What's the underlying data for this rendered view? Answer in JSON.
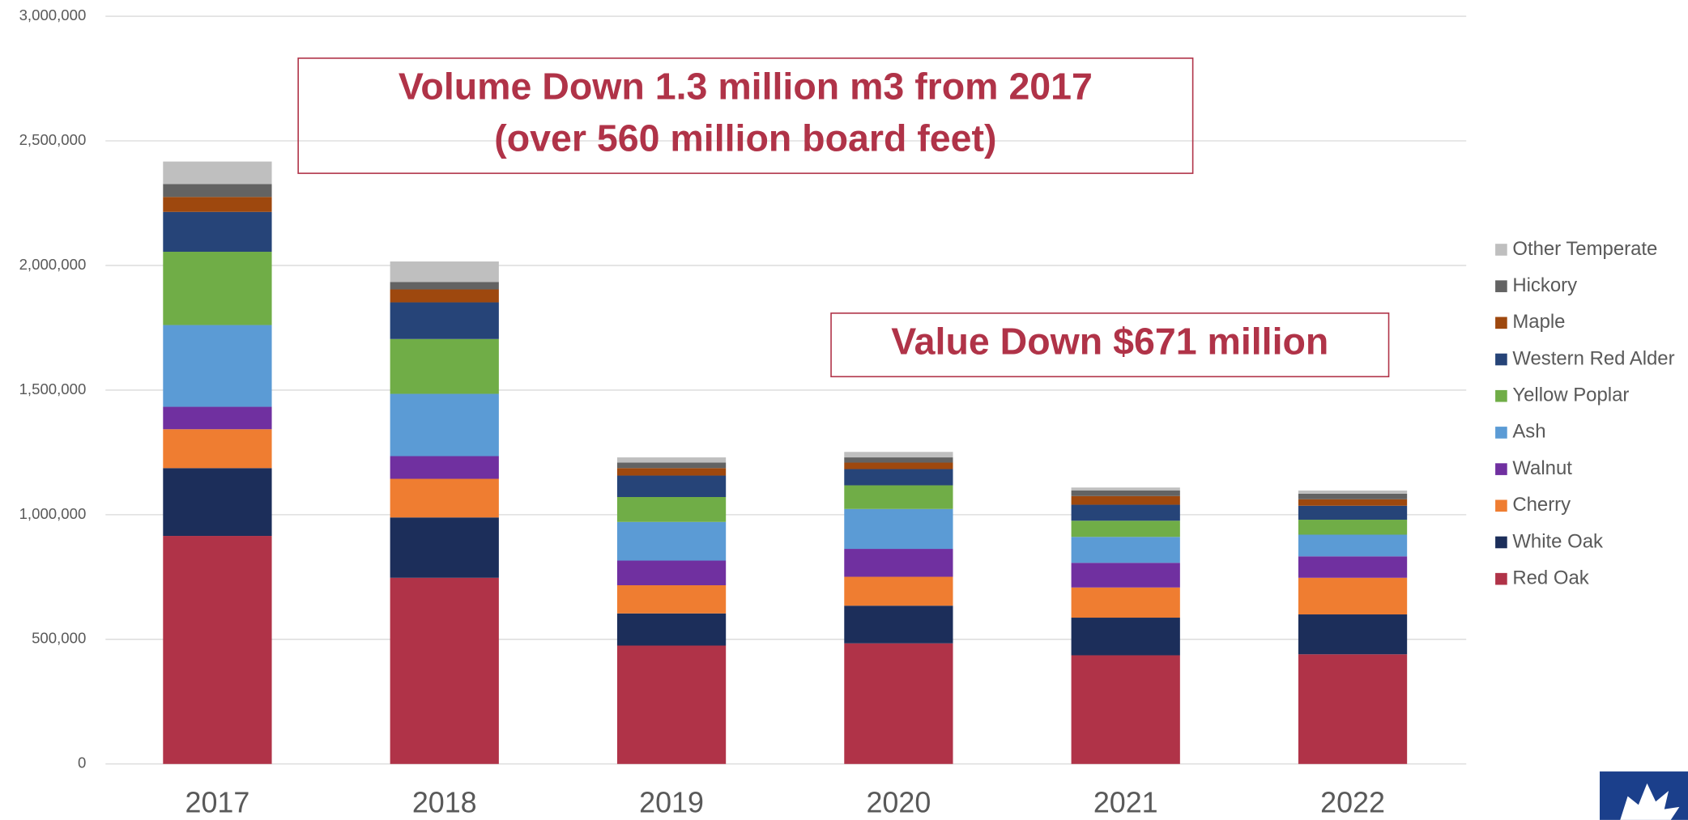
{
  "chart_data": {
    "type": "stacked_bar",
    "categories": [
      "2017",
      "2018",
      "2019",
      "2020",
      "2021",
      "2022"
    ],
    "series": [
      {
        "name": "Red Oak",
        "color": "#b03348",
        "values": [
          915000,
          747000,
          475000,
          484000,
          436000,
          440000
        ]
      },
      {
        "name": "White Oak",
        "color": "#1c2e5a",
        "values": [
          272000,
          242000,
          129000,
          151000,
          151000,
          160000
        ]
      },
      {
        "name": "Cherry",
        "color": "#ef7d31",
        "values": [
          156000,
          155000,
          113000,
          116000,
          121000,
          147000
        ]
      },
      {
        "name": "Walnut",
        "color": "#7030a0",
        "values": [
          90000,
          91000,
          99000,
          112000,
          99000,
          86000
        ]
      },
      {
        "name": "Ash",
        "color": "#5b9bd5",
        "values": [
          328000,
          250000,
          155000,
          160000,
          104000,
          87000
        ]
      },
      {
        "name": "Yellow Poplar",
        "color": "#70ad47",
        "values": [
          294000,
          220000,
          100000,
          95000,
          65000,
          60000
        ]
      },
      {
        "name": "Western Red Alder",
        "color": "#264478",
        "values": [
          160000,
          147000,
          86000,
          65000,
          64000,
          56000
        ]
      },
      {
        "name": "Maple",
        "color": "#9e480e",
        "values": [
          60000,
          52000,
          30000,
          26000,
          35000,
          26000
        ]
      },
      {
        "name": "Hickory",
        "color": "#636363",
        "values": [
          52000,
          30000,
          22000,
          21000,
          22000,
          22000
        ]
      },
      {
        "name": "Other Temperate",
        "color": "#bfbfbf",
        "values": [
          90000,
          82000,
          21000,
          22000,
          12000,
          13000
        ]
      }
    ],
    "ylim": [
      0,
      3000000
    ],
    "yticks": [
      0,
      {
        "value": 500000,
        "label": "500,000"
      },
      {
        "value": 1000000,
        "label": "1,000,000"
      },
      {
        "value": 1500000,
        "label": "1,500,000"
      },
      {
        "value": 2000000,
        "label": "2,000,000"
      },
      {
        "value": 2500000,
        "label": "2,500,000"
      },
      {
        "value": 3000000,
        "label": "3,000,000"
      }
    ],
    "grid": true,
    "legend": "right",
    "annotations": [
      {
        "lines": [
          "Volume Down 1.3 million m3 from 2017",
          "(over 560 million board feet)"
        ]
      },
      {
        "lines": [
          "Value Down $671 million"
        ]
      }
    ]
  }
}
